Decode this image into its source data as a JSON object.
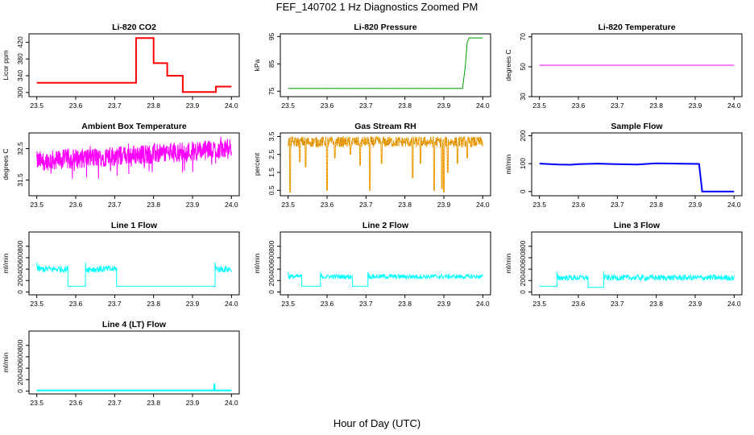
{
  "figure": {
    "title": "FEF_140702  1 Hz Diagnostics Zoomed PM",
    "xlabel": "Hour of Day (UTC)"
  },
  "colors": {
    "red": "#ff0000",
    "green": "#00c800",
    "magenta": "#ff00ff",
    "orange": "#ffa500",
    "blue": "#0000ff",
    "cyan": "#00ffff"
  },
  "chart_data": [
    {
      "type": "line",
      "title": "Li-820 CO2",
      "ylabel": "Licor ppm",
      "xlim": [
        23.48,
        24.02
      ],
      "ylim": [
        290,
        440
      ],
      "xticks": [
        23.5,
        23.6,
        23.7,
        23.8,
        23.9,
        24.0
      ],
      "xticklabels": [
        "23.5",
        "23.6",
        "23.7",
        "23.8",
        "23.9",
        "24.0"
      ],
      "yticks": [
        300,
        340,
        380,
        420
      ],
      "yticklabels": [
        "300",
        "340",
        "380",
        "420"
      ],
      "color": "#ff0000",
      "series": [
        {
          "style": "step",
          "points": [
            [
              23.5,
              323
            ],
            [
              23.755,
              323
            ],
            [
              23.755,
              430
            ],
            [
              23.8,
              430
            ],
            [
              23.8,
              370
            ],
            [
              23.835,
              370
            ],
            [
              23.835,
              340
            ],
            [
              23.875,
              340
            ],
            [
              23.875,
              301
            ],
            [
              23.96,
              301
            ],
            [
              23.96,
              314
            ],
            [
              24.0,
              314
            ]
          ]
        }
      ]
    },
    {
      "type": "line",
      "title": "Li-820 Pressure",
      "ylabel": "kPa",
      "xlim": [
        23.48,
        24.02
      ],
      "ylim": [
        73,
        96
      ],
      "xticks": [
        23.5,
        23.6,
        23.7,
        23.8,
        23.9,
        24.0
      ],
      "xticklabels": [
        "23.5",
        "23.6",
        "23.7",
        "23.8",
        "23.9",
        "24.0"
      ],
      "yticks": [
        75,
        85,
        95
      ],
      "yticklabels": [
        "75",
        "85",
        "95"
      ],
      "color": "#00c800",
      "series": [
        {
          "style": "step",
          "points": [
            [
              23.5,
              76
            ],
            [
              23.948,
              76
            ],
            [
              23.955,
              84
            ],
            [
              23.96,
              93
            ],
            [
              23.965,
              94.5
            ],
            [
              24.0,
              94.5
            ]
          ]
        }
      ]
    },
    {
      "type": "line",
      "title": "Li-820 Temperature",
      "ylabel": "degrees C",
      "xlim": [
        23.48,
        24.02
      ],
      "ylim": [
        30,
        72
      ],
      "xticks": [
        23.5,
        23.6,
        23.7,
        23.8,
        23.9,
        24.0
      ],
      "xticklabels": [
        "23.5",
        "23.6",
        "23.7",
        "23.8",
        "23.9",
        "24.0"
      ],
      "yticks": [
        30,
        50,
        70
      ],
      "yticklabels": [
        "30",
        "50",
        "70"
      ],
      "color": "#ff00ff",
      "series": [
        {
          "style": "step",
          "points": [
            [
              23.5,
              51
            ],
            [
              24.0,
              51
            ]
          ]
        }
      ]
    },
    {
      "type": "line",
      "title": "Ambient Box Temperature",
      "ylabel": "degrees C",
      "xlim": [
        23.48,
        24.02
      ],
      "ylim": [
        31.0,
        33.0
      ],
      "xticks": [
        23.5,
        23.6,
        23.7,
        23.8,
        23.9,
        24.0
      ],
      "xticklabels": [
        "23.5",
        "23.6",
        "23.7",
        "23.8",
        "23.9",
        "24.0"
      ],
      "yticks": [
        31.5,
        32.5
      ],
      "yticklabels": [
        "31.5",
        "32.5"
      ],
      "color": "#ff00ff",
      "series": [
        {
          "style": "noise",
          "start": 32.1,
          "end": 32.5,
          "amp": 0.4,
          "spikes": -0.7
        }
      ]
    },
    {
      "type": "line",
      "title": "Gas Stream RH",
      "ylabel": "percent",
      "xlim": [
        23.48,
        24.02
      ],
      "ylim": [
        0.2,
        3.7
      ],
      "xticks": [
        23.5,
        23.6,
        23.7,
        23.8,
        23.9,
        24.0
      ],
      "xticklabels": [
        "23.5",
        "23.6",
        "23.7",
        "23.8",
        "23.9",
        "24.0"
      ],
      "yticks": [
        0.5,
        1.5,
        2.5,
        3.5
      ],
      "yticklabels": [
        "0.5",
        "1.5",
        "2.5",
        "3.5"
      ],
      "color": "#ffa500",
      "series": [
        {
          "style": "rh",
          "base": 3.2,
          "amp": 0.3,
          "dips": [
            [
              23.505,
              0.4
            ],
            [
              23.53,
              2.1
            ],
            [
              23.545,
              1.8
            ],
            [
              23.6,
              0.5
            ],
            [
              23.62,
              2.3
            ],
            [
              23.66,
              2.5
            ],
            [
              23.685,
              1.9
            ],
            [
              23.71,
              0.5
            ],
            [
              23.74,
              2.0
            ],
            [
              23.82,
              1.2
            ],
            [
              23.84,
              2.0
            ],
            [
              23.875,
              0.5
            ],
            [
              23.895,
              0.6
            ],
            [
              23.9,
              0.4
            ],
            [
              23.91,
              1.5
            ],
            [
              23.935,
              2.0
            ],
            [
              23.96,
              2.3
            ]
          ]
        }
      ]
    },
    {
      "type": "line",
      "title": "Sample Flow",
      "ylabel": "ml/min",
      "xlim": [
        23.48,
        24.02
      ],
      "ylim": [
        -15,
        210
      ],
      "xticks": [
        23.5,
        23.6,
        23.7,
        23.8,
        23.9,
        24.0
      ],
      "xticklabels": [
        "23.5",
        "23.6",
        "23.7",
        "23.8",
        "23.9",
        "24.0"
      ],
      "yticks": [
        0,
        100,
        200
      ],
      "yticklabels": [
        "0",
        "100",
        "200"
      ],
      "color": "#0000ff",
      "series": [
        {
          "style": "step",
          "points": [
            [
              23.5,
              100
            ],
            [
              23.55,
              97
            ],
            [
              23.58,
              96
            ],
            [
              23.6,
              98
            ],
            [
              23.65,
              100
            ],
            [
              23.7,
              98
            ],
            [
              23.75,
              97
            ],
            [
              23.8,
              101
            ],
            [
              23.85,
              100
            ],
            [
              23.91,
              99
            ],
            [
              23.918,
              0
            ],
            [
              24.0,
              0
            ]
          ]
        }
      ]
    },
    {
      "type": "line",
      "title": "Line 1 Flow",
      "ylabel": "ml/min",
      "xlim": [
        23.48,
        24.02
      ],
      "ylim": [
        -50,
        1050
      ],
      "xticks": [
        23.5,
        23.6,
        23.7,
        23.8,
        23.9,
        24.0
      ],
      "xticklabels": [
        "23.5",
        "23.6",
        "23.7",
        "23.8",
        "23.9",
        "24.0"
      ],
      "yticks": [
        0,
        200,
        400,
        600,
        800
      ],
      "yticklabels": [
        "0",
        "200",
        "400",
        "600",
        "800"
      ],
      "color": "#00ffff",
      "series": [
        {
          "style": "segments",
          "segs": [
            [
              23.5,
              23.58,
              400,
              60
            ],
            [
              23.58,
              23.625,
              100,
              0
            ],
            [
              23.625,
              23.705,
              400,
              60
            ],
            [
              23.705,
              23.958,
              100,
              0
            ],
            [
              23.958,
              24.0,
              400,
              60
            ]
          ]
        }
      ]
    },
    {
      "type": "line",
      "title": "Line 2 Flow",
      "ylabel": "ml/min",
      "xlim": [
        23.48,
        24.02
      ],
      "ylim": [
        -50,
        1050
      ],
      "xticks": [
        23.5,
        23.6,
        23.7,
        23.8,
        23.9,
        24.0
      ],
      "xticklabels": [
        "23.5",
        "23.6",
        "23.7",
        "23.8",
        "23.9",
        "24.0"
      ],
      "yticks": [
        0,
        200,
        400,
        600,
        800
      ],
      "yticklabels": [
        "0",
        "200",
        "400",
        "600",
        "800"
      ],
      "color": "#00ffff",
      "series": [
        {
          "style": "segments",
          "segs": [
            [
              23.5,
              23.535,
              270,
              40
            ],
            [
              23.535,
              23.583,
              100,
              0
            ],
            [
              23.583,
              23.665,
              270,
              40
            ],
            [
              23.665,
              23.705,
              100,
              0
            ],
            [
              23.705,
              24.0,
              270,
              40
            ]
          ]
        }
      ]
    },
    {
      "type": "line",
      "title": "Line 3 Flow",
      "ylabel": "ml/min",
      "xlim": [
        23.48,
        24.02
      ],
      "ylim": [
        -50,
        1050
      ],
      "xticks": [
        23.5,
        23.6,
        23.7,
        23.8,
        23.9,
        24.0
      ],
      "xticklabels": [
        "23.5",
        "23.6",
        "23.7",
        "23.8",
        "23.9",
        "24.0"
      ],
      "yticks": [
        0,
        200,
        400,
        600,
        800
      ],
      "yticklabels": [
        "0",
        "200",
        "400",
        "600",
        "800"
      ],
      "color": "#00ffff",
      "series": [
        {
          "style": "segments",
          "segs": [
            [
              23.5,
              23.545,
              100,
              0
            ],
            [
              23.545,
              23.625,
              250,
              50
            ],
            [
              23.625,
              23.665,
              80,
              0
            ],
            [
              23.665,
              24.0,
              250,
              50
            ]
          ]
        }
      ]
    },
    {
      "type": "line",
      "title": "Line 4 (LT) Flow",
      "ylabel": "ml/min",
      "xlim": [
        23.48,
        24.02
      ],
      "ylim": [
        -50,
        1050
      ],
      "xticks": [
        23.5,
        23.6,
        23.7,
        23.8,
        23.9,
        24.0
      ],
      "xticklabels": [
        "23.5",
        "23.6",
        "23.7",
        "23.8",
        "23.9",
        "24.0"
      ],
      "yticks": [
        0,
        200,
        400,
        600,
        800
      ],
      "yticklabels": [
        "0",
        "200",
        "400",
        "600",
        "800"
      ],
      "color": "#00ffff",
      "series": [
        {
          "style": "step",
          "points": [
            [
              23.5,
              10
            ],
            [
              23.955,
              10
            ],
            [
              23.956,
              130
            ],
            [
              23.957,
              10
            ],
            [
              24.0,
              10
            ]
          ]
        }
      ]
    }
  ]
}
